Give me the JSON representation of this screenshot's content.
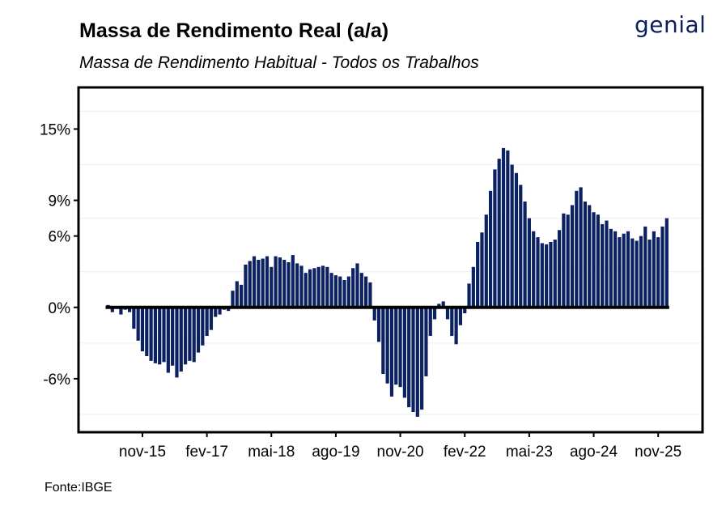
{
  "header": {
    "title": "Massa de Rendimento Real (a/a)",
    "subtitle": "Massa de Rendimento Habitual - Todos os Trabalhos",
    "logo_text": "genial",
    "source": "Fonte:IBGE"
  },
  "colors": {
    "bar": "#0b2161",
    "axis": "#000000",
    "grid": "#eeeeee"
  },
  "chart_data": {
    "type": "bar",
    "title": "Massa de Rendimento Real (a/a)",
    "subtitle": "Massa de Rendimento Habitual - Todos os Trabalhos",
    "xlabel": "",
    "ylabel": "",
    "ylim": [
      -10.5,
      18.5
    ],
    "y_ticks": [
      {
        "value": 15,
        "label": "15%"
      },
      {
        "value": 9,
        "label": "9%"
      },
      {
        "value": 6,
        "label": "6%"
      },
      {
        "value": 0,
        "label": "0%"
      },
      {
        "value": -6,
        "label": "-6%"
      }
    ],
    "x_ticks": [
      {
        "index": 8,
        "label": "nov-15"
      },
      {
        "index": 23,
        "label": "fev-17"
      },
      {
        "index": 38,
        "label": "mai-18"
      },
      {
        "index": 53,
        "label": "ago-19"
      },
      {
        "index": 68,
        "label": "nov-20"
      },
      {
        "index": 83,
        "label": "fev-22"
      },
      {
        "index": 98,
        "label": "mai-23"
      },
      {
        "index": 113,
        "label": "ago-24"
      },
      {
        "index": 128,
        "label": "nov-25"
      }
    ],
    "values": [
      0.2,
      -0.4,
      -0.1,
      -0.6,
      -0.2,
      -0.4,
      -1.8,
      -2.8,
      -3.7,
      -4.1,
      -4.5,
      -4.7,
      -4.8,
      -4.6,
      -5.5,
      -4.9,
      -5.9,
      -5.4,
      -4.8,
      -4.5,
      -4.6,
      -3.8,
      -3.2,
      -2.4,
      -1.9,
      -0.8,
      -0.6,
      -0.2,
      -0.3,
      1.4,
      2.2,
      1.9,
      3.6,
      3.9,
      4.3,
      4.0,
      4.1,
      4.3,
      3.4,
      4.3,
      4.2,
      4.0,
      3.8,
      4.4,
      3.7,
      3.5,
      2.9,
      3.2,
      3.3,
      3.4,
      3.5,
      3.4,
      2.9,
      2.7,
      2.6,
      2.3,
      2.6,
      3.3,
      3.7,
      2.9,
      2.6,
      2.1,
      -1.1,
      -2.9,
      -5.6,
      -6.4,
      -7.5,
      -6.5,
      -6.7,
      -7.6,
      -8.4,
      -8.8,
      -9.2,
      -8.6,
      -5.8,
      -2.4,
      -1.0,
      0.3,
      0.5,
      -1.0,
      -2.4,
      -3.1,
      -1.5,
      -0.5,
      2.0,
      3.4,
      5.5,
      6.3,
      7.8,
      9.8,
      11.6,
      12.5,
      13.4,
      13.2,
      12.0,
      11.3,
      10.3,
      8.9,
      7.5,
      6.4,
      5.9,
      5.4,
      5.3,
      5.5,
      5.7,
      6.5,
      7.9,
      7.8,
      8.6,
      9.8,
      10.1,
      8.9,
      8.6,
      8.0,
      7.8,
      7.0,
      7.3,
      6.6,
      6.4,
      5.9,
      6.2,
      6.4,
      5.8,
      5.6,
      6.0,
      6.8,
      5.7,
      6.4,
      5.9,
      6.8,
      7.5
    ]
  }
}
